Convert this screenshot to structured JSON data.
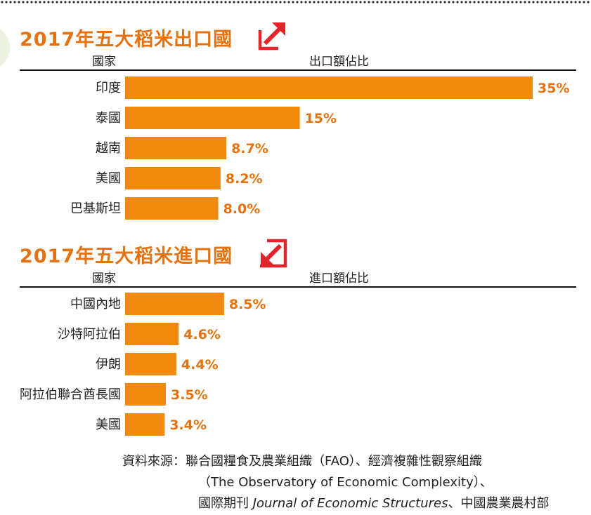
{
  "chart_data": [
    {
      "type": "bar",
      "orientation": "horizontal",
      "title": "2017年五大稻米出口國",
      "direction_icon": "export-arrow-icon",
      "category_header": "國家",
      "value_header": "出口額佔比",
      "categories": [
        "印度",
        "泰國",
        "越南",
        "美國",
        "巴基斯坦"
      ],
      "values": [
        35,
        15,
        8.7,
        8.2,
        8.0
      ],
      "value_labels": [
        "35%",
        "15%",
        "8.7%",
        "8.2%",
        "8.0%"
      ],
      "unit": "%",
      "xlim": [
        0,
        35
      ],
      "bar_color": "#f08a0e"
    },
    {
      "type": "bar",
      "orientation": "horizontal",
      "title": "2017年五大稻米進口國",
      "direction_icon": "import-arrow-icon",
      "category_header": "國家",
      "value_header": "進口額佔比",
      "categories": [
        "中國內地",
        "沙特阿拉伯",
        "伊朗",
        "阿拉伯聯合酋長國",
        "美國"
      ],
      "values": [
        8.5,
        4.6,
        4.4,
        3.5,
        3.4
      ],
      "value_labels": [
        "8.5%",
        "4.6%",
        "4.4%",
        "3.5%",
        "3.4%"
      ],
      "unit": "%",
      "xlim": [
        0,
        35
      ],
      "bar_color": "#f08a0e"
    }
  ],
  "colors": {
    "title": "#e5720f",
    "bar": "#f08a0e",
    "icon_red": "#e3242b"
  },
  "source": {
    "label": "資料來源：",
    "line1": "聯合國糧食及農業組織（FAO）、經濟複雜性觀察組織",
    "line2": "（The Observatory of Economic Complexity）、",
    "line3_prefix": "國際期刊 ",
    "line3_italic": "Journal of Economic Structures",
    "line3_suffix": "、中國農業農村部"
  }
}
